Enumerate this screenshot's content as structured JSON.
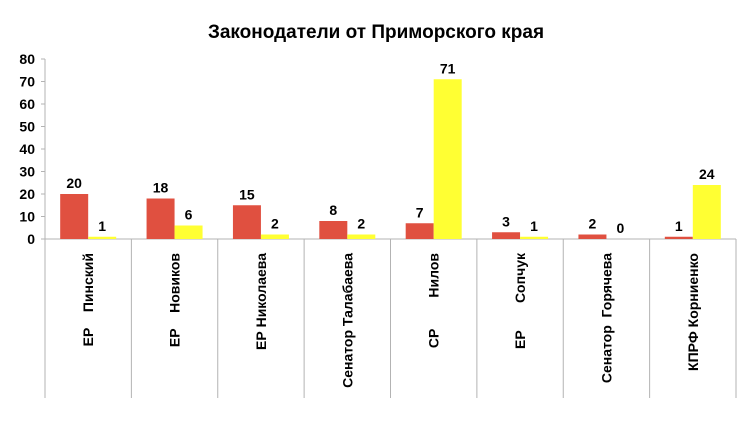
{
  "chart_data": {
    "type": "bar",
    "title": "Законодатели от Приморского края",
    "categories": [
      "ЕР    Пинский",
      "ЕР    Новиков",
      "ЕР Николаева",
      "Сенатор Талабаева",
      "СР        Нилов",
      "ЕР       Сопчук",
      "Сенатор  Горячева",
      "КПРФ Корниенко"
    ],
    "series": [
      {
        "values": [
          20,
          18,
          15,
          8,
          7,
          3,
          2,
          1
        ],
        "color": "#e05040"
      },
      {
        "values": [
          1,
          6,
          2,
          2,
          71,
          1,
          0,
          24
        ],
        "color": "#ffff33"
      }
    ],
    "ylim": [
      0,
      80
    ],
    "yticks": [
      0,
      10,
      20,
      30,
      40,
      50,
      60,
      70,
      80
    ],
    "grid": false,
    "legend": "none",
    "xlabel": "",
    "ylabel": ""
  }
}
